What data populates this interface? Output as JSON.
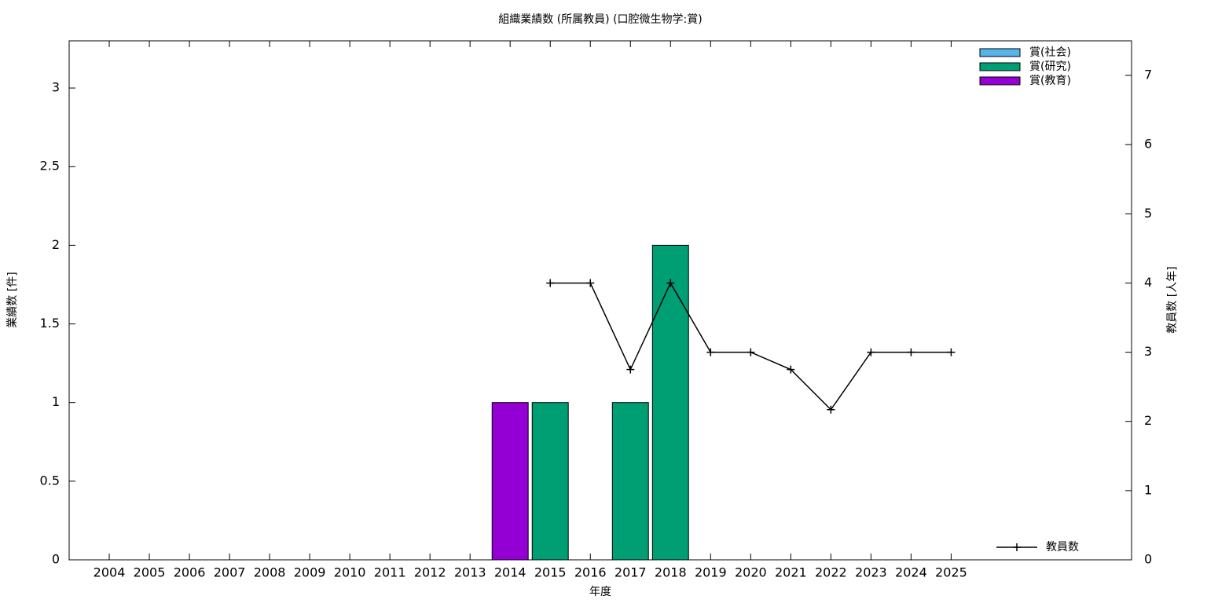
{
  "chart_data": {
    "type": "bar",
    "stacked": true,
    "title": "組織業績数 (所属教員) (口腔微生物学:賞)",
    "x_label": "年度",
    "y_label": "業績数 [件]",
    "y2_label": "教員数 [人年]",
    "categories": [
      "2004",
      "2005",
      "2006",
      "2007",
      "2008",
      "2009",
      "2010",
      "2011",
      "2012",
      "2013",
      "2014",
      "2015",
      "2016",
      "2017",
      "2018",
      "2019",
      "2020",
      "2021",
      "2022",
      "2023",
      "2024",
      "2025"
    ],
    "series": [
      {
        "name": "賞(社会)",
        "color": "#56b4e9",
        "values": [
          0,
          0,
          0,
          0,
          0,
          0,
          0,
          0,
          0,
          0,
          0,
          0,
          0,
          0,
          0,
          0,
          0,
          0,
          0,
          0,
          0,
          0
        ]
      },
      {
        "name": "賞(研究)",
        "color": "#009e73",
        "values": [
          0,
          0,
          0,
          0,
          0,
          0,
          0,
          0,
          0,
          0,
          0,
          1,
          0,
          1,
          2,
          0,
          0,
          0,
          0,
          0,
          0,
          0
        ]
      },
      {
        "name": "賞(教育)",
        "color": "#9400d3",
        "values": [
          0,
          0,
          0,
          0,
          0,
          0,
          0,
          0,
          0,
          0,
          1,
          0,
          0,
          0,
          0,
          0,
          0,
          0,
          0,
          0,
          0,
          0
        ]
      },
      {
        "name": "教員数",
        "type": "line",
        "axis": "y2",
        "color": "#000000",
        "values": [
          null,
          null,
          null,
          null,
          null,
          null,
          null,
          null,
          null,
          null,
          null,
          4,
          4,
          2.75,
          4,
          3,
          3,
          2.75,
          2.17,
          3,
          3,
          3
        ]
      }
    ],
    "ylim": [
      0,
      3.3
    ],
    "yticks": [
      0,
      0.5,
      1,
      1.5,
      2,
      2.5,
      3
    ],
    "y2lim": [
      0,
      7.5
    ],
    "y2ticks": [
      0,
      1,
      2,
      3,
      4,
      5,
      6,
      7
    ],
    "legend": "top-right",
    "line_legend": "bottom-right"
  }
}
